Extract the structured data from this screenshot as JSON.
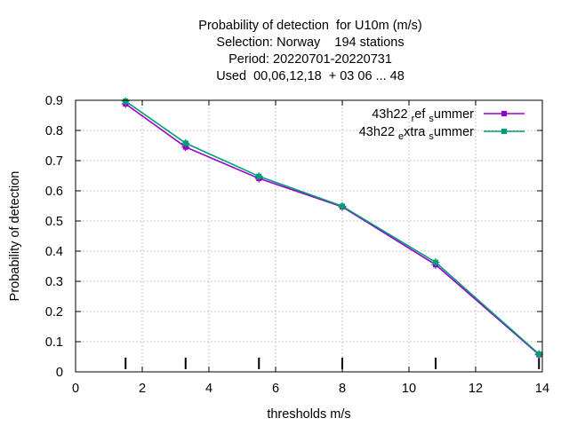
{
  "chart_data": {
    "type": "line",
    "title_lines": [
      "Probability of detection  for U10m (m/s)",
      "Selection: Norway    194 stations",
      "Period: 20220701-20220731",
      "Used  00,06,12,18  + 03 06 ... 48"
    ],
    "xlabel": "thresholds m/s",
    "ylabel": "Probability of detection",
    "xlim": [
      0,
      14
    ],
    "ylim": [
      0,
      0.9
    ],
    "xticks": [
      0,
      2,
      4,
      6,
      8,
      10,
      12,
      14
    ],
    "yticks": [
      0,
      0.1,
      0.2,
      0.3,
      0.4,
      0.5,
      0.6,
      0.7,
      0.8,
      0.9
    ],
    "grid": true,
    "legend_position": "top-right",
    "threshold_marks": [
      1.5,
      3.3,
      5.5,
      8.0,
      10.8,
      13.9
    ],
    "series": [
      {
        "name": "43h22_ref_summer",
        "legend_parts": [
          "43h22 ",
          "r",
          "ef ",
          "s",
          "ummer"
        ],
        "color": "#9400d3",
        "marker": "filled-square",
        "x": [
          1.5,
          3.3,
          5.5,
          8.0,
          10.8,
          13.9
        ],
        "y": [
          0.888,
          0.745,
          0.641,
          0.547,
          0.355,
          0.057
        ]
      },
      {
        "name": "43h22_extra_summer",
        "legend_parts": [
          "43h22 ",
          "e",
          "xtra ",
          "s",
          "ummer"
        ],
        "color": "#009e73",
        "marker": "filled-square",
        "x": [
          1.5,
          3.3,
          5.5,
          8.0,
          10.8,
          13.9
        ],
        "y": [
          0.897,
          0.758,
          0.648,
          0.549,
          0.363,
          0.059
        ]
      }
    ]
  }
}
